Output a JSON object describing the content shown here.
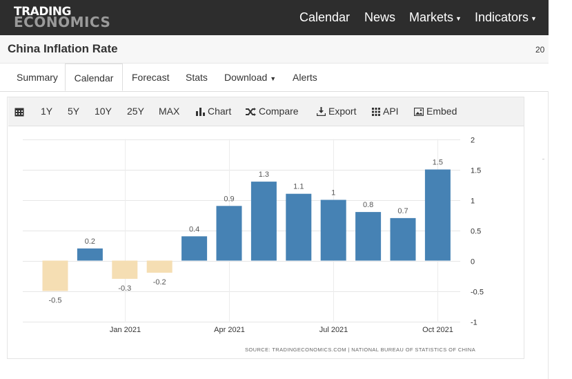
{
  "header": {
    "logo_line1": "TRADING",
    "logo_line2": "ECONOMICS",
    "nav": [
      {
        "label": "Calendar",
        "dropdown": false
      },
      {
        "label": "News",
        "dropdown": false
      },
      {
        "label": "Markets",
        "dropdown": true
      },
      {
        "label": "Indicators",
        "dropdown": true
      }
    ]
  },
  "page": {
    "title": "China Inflation Rate",
    "date_partial": "20"
  },
  "tabs": [
    {
      "label": "Summary",
      "active": false
    },
    {
      "label": "Calendar",
      "active": true
    },
    {
      "label": "Forecast",
      "active": false
    },
    {
      "label": "Stats",
      "active": false
    },
    {
      "label": "Download",
      "active": false,
      "dropdown": true
    },
    {
      "label": "Alerts",
      "active": false
    }
  ],
  "toolbar": {
    "calendar_icon": "calendar-icon",
    "ranges": [
      "1Y",
      "5Y",
      "10Y",
      "25Y",
      "MAX"
    ],
    "chart_label": "Chart",
    "compare_label": "Compare",
    "export_label": "Export",
    "api_label": "API",
    "embed_label": "Embed"
  },
  "chart_data": {
    "type": "bar",
    "title": "",
    "categories": [
      "Nov 2020",
      "Dec 2020",
      "Jan 2021",
      "Feb 2021",
      "Mar 2021",
      "Apr 2021",
      "May 2021",
      "Jun 2021",
      "Jul 2021",
      "Aug 2021",
      "Sep 2021",
      "Oct 2021"
    ],
    "values": [
      -0.5,
      0.2,
      -0.3,
      -0.2,
      0.4,
      0.9,
      1.3,
      1.1,
      1,
      0.8,
      0.7,
      1.5
    ],
    "value_labels": [
      "-0.5",
      "0.2",
      "-0.3",
      "-0.2",
      "0.4",
      "0.9",
      "1.3",
      "1.1",
      "1",
      "0.8",
      "0.7",
      "1.5"
    ],
    "x_tick_labels": [
      {
        "category": "Jan 2021",
        "label": "Jan 2021"
      },
      {
        "category": "Apr 2021",
        "label": "Apr 2021"
      },
      {
        "category": "Jul 2021",
        "label": "Jul 2021"
      },
      {
        "category": "Oct 2021",
        "label": "Oct 2021"
      }
    ],
    "y_ticks": [
      "2",
      "1.5",
      "1",
      "0.5",
      "0",
      "-0.5",
      "-1"
    ],
    "ylim": [
      -1,
      2
    ],
    "y_axis_side": "right",
    "grid": true,
    "colors": {
      "positive": "#4682b4",
      "negative": "#f5deb3"
    },
    "source": "SOURCE: TRADINGECONOMICS.COM | NATIONAL BUREAU OF STATISTICS OF CHINA"
  }
}
